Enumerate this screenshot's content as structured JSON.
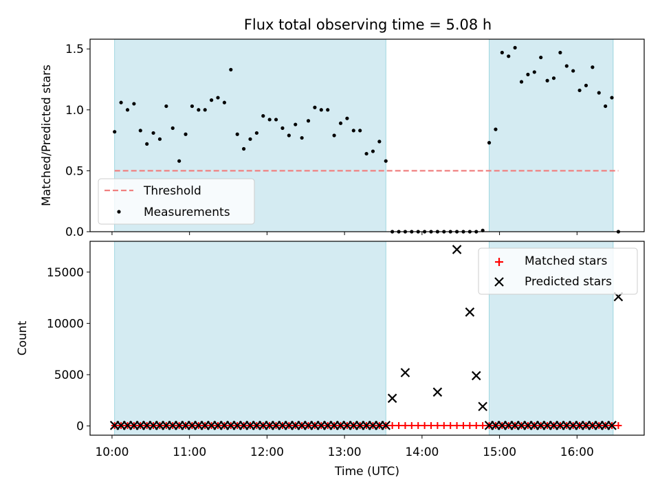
{
  "figure": {
    "title": "Flux total observing time = 5.08 h",
    "xlabel": "Time (UTC)"
  },
  "chart_data": [
    {
      "type": "scatter",
      "panel": "top",
      "ylabel": "Matched/Predicted stars",
      "xlim": [
        "09:43",
        "16:52"
      ],
      "ylim": [
        0,
        1.58
      ],
      "yticks": [
        "0.0",
        "0.5",
        "1.0",
        "1.5"
      ],
      "shaded_intervals": [
        [
          "10:02",
          "13:32"
        ],
        [
          "14:52",
          "16:28"
        ]
      ],
      "shade_color": "#add8e6",
      "threshold": {
        "name": "Threshold",
        "value": 0.5,
        "x_range": [
          "10:02",
          "16:32"
        ],
        "color": "#f08080"
      },
      "legend": {
        "position": "lower-left",
        "entries": [
          "Threshold",
          "Measurements"
        ]
      },
      "series": [
        {
          "name": "Measurements",
          "color": "#000000",
          "points": [
            [
              "10:02",
              0.82
            ],
            [
              "10:07",
              1.06
            ],
            [
              "10:12",
              1.0
            ],
            [
              "10:17",
              1.05
            ],
            [
              "10:22",
              0.83
            ],
            [
              "10:27",
              0.72
            ],
            [
              "10:32",
              0.81
            ],
            [
              "10:37",
              0.76
            ],
            [
              "10:42",
              1.03
            ],
            [
              "10:47",
              0.85
            ],
            [
              "10:52",
              0.58
            ],
            [
              "10:57",
              0.8
            ],
            [
              "11:02",
              1.03
            ],
            [
              "11:07",
              1.0
            ],
            [
              "11:12",
              1.0
            ],
            [
              "11:17",
              1.08
            ],
            [
              "11:22",
              1.1
            ],
            [
              "11:27",
              1.06
            ],
            [
              "11:32",
              1.33
            ],
            [
              "11:37",
              0.8
            ],
            [
              "11:42",
              0.68
            ],
            [
              "11:47",
              0.76
            ],
            [
              "11:52",
              0.81
            ],
            [
              "11:57",
              0.95
            ],
            [
              "12:02",
              0.92
            ],
            [
              "12:07",
              0.92
            ],
            [
              "12:12",
              0.85
            ],
            [
              "12:17",
              0.79
            ],
            [
              "12:22",
              0.88
            ],
            [
              "12:27",
              0.77
            ],
            [
              "12:32",
              0.91
            ],
            [
              "12:37",
              1.02
            ],
            [
              "12:42",
              1.0
            ],
            [
              "12:47",
              1.0
            ],
            [
              "12:52",
              0.79
            ],
            [
              "12:57",
              0.89
            ],
            [
              "13:02",
              0.93
            ],
            [
              "13:07",
              0.83
            ],
            [
              "13:12",
              0.83
            ],
            [
              "13:17",
              0.64
            ],
            [
              "13:22",
              0.66
            ],
            [
              "13:27",
              0.74
            ],
            [
              "13:32",
              0.58
            ],
            [
              "13:37",
              0.0
            ],
            [
              "13:42",
              0.0
            ],
            [
              "13:47",
              0.0
            ],
            [
              "13:52",
              0.0
            ],
            [
              "13:57",
              0.0
            ],
            [
              "14:02",
              0.0
            ],
            [
              "14:07",
              0.0
            ],
            [
              "14:12",
              0.0
            ],
            [
              "14:17",
              0.0
            ],
            [
              "14:22",
              0.0
            ],
            [
              "14:27",
              0.0
            ],
            [
              "14:32",
              0.0
            ],
            [
              "14:37",
              0.0
            ],
            [
              "14:42",
              0.0
            ],
            [
              "14:47",
              0.01
            ],
            [
              "14:52",
              0.73
            ],
            [
              "14:57",
              0.84
            ],
            [
              "15:02",
              1.47
            ],
            [
              "15:07",
              1.44
            ],
            [
              "15:12",
              1.51
            ],
            [
              "15:17",
              1.23
            ],
            [
              "15:22",
              1.29
            ],
            [
              "15:27",
              1.31
            ],
            [
              "15:32",
              1.43
            ],
            [
              "15:37",
              1.24
            ],
            [
              "15:42",
              1.26
            ],
            [
              "15:47",
              1.47
            ],
            [
              "15:52",
              1.36
            ],
            [
              "15:57",
              1.32
            ],
            [
              "16:02",
              1.16
            ],
            [
              "16:07",
              1.2
            ],
            [
              "16:12",
              1.35
            ],
            [
              "16:17",
              1.14
            ],
            [
              "16:22",
              1.03
            ],
            [
              "16:27",
              1.1
            ],
            [
              "16:32",
              0.0
            ]
          ]
        }
      ]
    },
    {
      "type": "scatter",
      "panel": "bottom",
      "ylabel": "Count",
      "xlim": [
        "09:43",
        "16:52"
      ],
      "ylim": [
        -900,
        18000
      ],
      "yticks": [
        "0",
        "5000",
        "10000",
        "15000"
      ],
      "xticks": [
        "10:00",
        "11:00",
        "12:00",
        "13:00",
        "14:00",
        "15:00",
        "16:00"
      ],
      "shaded_intervals": [
        [
          "10:02",
          "13:32"
        ],
        [
          "14:52",
          "16:28"
        ]
      ],
      "shade_color": "#add8e6",
      "legend": {
        "position": "top-right",
        "entries": [
          "Matched stars",
          "Predicted stars"
        ]
      },
      "series": [
        {
          "name": "Matched stars",
          "color": "#ff0000",
          "marker": "plus",
          "x_start": "10:02",
          "x_end": "16:32",
          "x_step_minutes": 5,
          "value": 40
        },
        {
          "name": "Predicted stars",
          "color": "#000000",
          "marker": "x",
          "x_start": "10:02",
          "x_end": "16:32",
          "x_step_minutes": 5,
          "baseline_value": 50,
          "points": [
            [
              "13:37",
              2700
            ],
            [
              "13:47",
              5200
            ],
            [
              "14:12",
              3300
            ],
            [
              "14:27",
              17200
            ],
            [
              "14:37",
              11100
            ],
            [
              "14:42",
              4900
            ],
            [
              "14:47",
              1900
            ],
            [
              "16:32",
              12600
            ]
          ]
        }
      ]
    }
  ]
}
